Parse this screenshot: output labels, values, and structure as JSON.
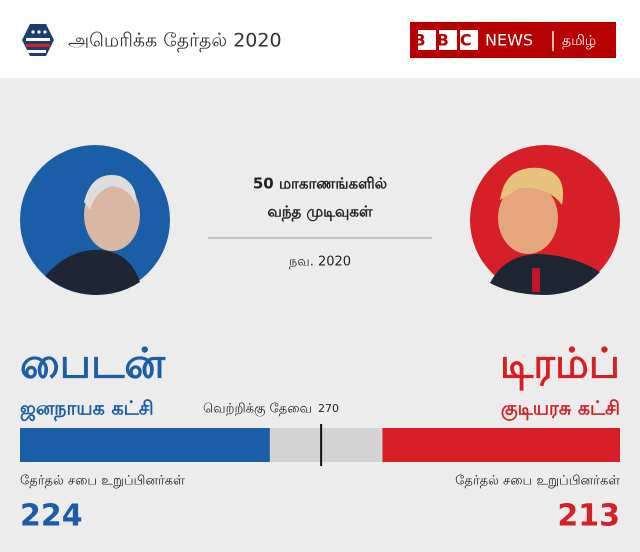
{
  "header": {
    "title": "அமெரிக்க தேர்தல் 2020",
    "logo": {
      "brand": "BBC",
      "section": "NEWS",
      "language": "தமிழ்"
    }
  },
  "chart_data": {
    "type": "bar",
    "title": "50 மாகாணங்களில்",
    "subtitle": "வந்த முடிவுகள்",
    "date": "நவ. 2020",
    "xlim": [
      0,
      538
    ],
    "threshold": {
      "label": "வெற்றிக்கு தேவை",
      "value": 270
    },
    "series": [
      {
        "name": "பைடன்",
        "party": "ஜனநாயக கட்சி",
        "color": "#1b5ea8",
        "label": "தேர்தல் சபை உறுப்பினர்கள்",
        "value": 224,
        "side": "left"
      },
      {
        "name": "டிரம்ப்",
        "party": "குடியரசு கட்சி",
        "color": "#d61f26",
        "label": "தேர்தல் சபை உறுப்பினர்கள்",
        "value": 213,
        "side": "right"
      }
    ]
  }
}
